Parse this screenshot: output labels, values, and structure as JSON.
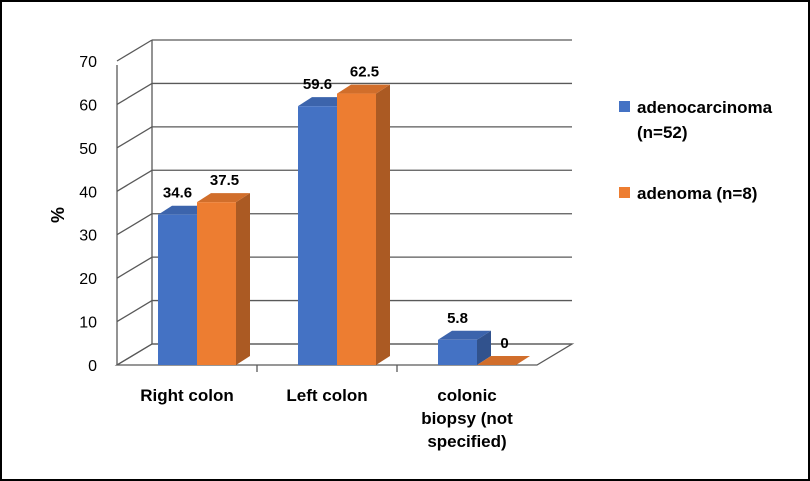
{
  "chart_data": {
    "type": "bar",
    "categories": [
      [
        "Right colon"
      ],
      [
        "Left colon"
      ],
      [
        "colonic",
        "biopsy (not",
        "specified)"
      ]
    ],
    "series": [
      {
        "name": "adenocarcinoma (n=52)",
        "legend_lines": [
          "adenocarcinoma",
          "(n=52)"
        ],
        "values": [
          34.6,
          59.6,
          5.8
        ],
        "color": "#4472C4"
      },
      {
        "name": "adenoma (n=8)",
        "legend_lines": [
          "adenoma (n=8)"
        ],
        "values": [
          37.5,
          62.5,
          0
        ],
        "color": "#ED7D31"
      }
    ],
    "data_labels": [
      [
        "34.6",
        "59.6",
        "5.8"
      ],
      [
        "37.5",
        "62.5",
        "0"
      ]
    ],
    "ylabel": "%",
    "xlabel": "",
    "ylim": [
      0,
      70
    ],
    "yticks": [
      "0",
      "10",
      "20",
      "30",
      "40",
      "50",
      "60",
      "70"
    ],
    "grid": true,
    "style": "3d-clustered-column",
    "legend_position": "right"
  }
}
